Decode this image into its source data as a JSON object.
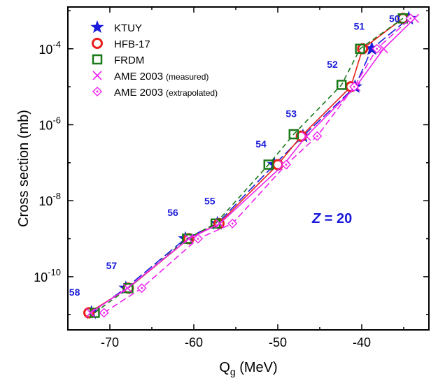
{
  "chart_data": {
    "type": "scatter",
    "xlabel_main": "Q",
    "xlabel_sub": "g",
    "xlabel_unit": " (MeV)",
    "ylabel": "Cross section (mb)",
    "annotation": {
      "z_label": "Z",
      "z_value": " = 20"
    },
    "x_ticks": [
      "-70",
      "-60",
      "-50",
      "-40"
    ],
    "x_tick_values": [
      -70,
      -60,
      -50,
      -40
    ],
    "y_ticks": [
      {
        "base": "10",
        "exp": "-4",
        "value": -4
      },
      {
        "base": "10",
        "exp": "-6",
        "value": -6
      },
      {
        "base": "10",
        "exp": "-8",
        "value": -8
      },
      {
        "base": "10",
        "exp": "-10",
        "value": -10
      }
    ],
    "xlim": [
      -75,
      -32
    ],
    "ylim_log10": [
      -11.4,
      -2.9
    ],
    "yscale": "log",
    "legend_position": "top-left",
    "mass_labels": [
      {
        "label": "58",
        "x": -74.2,
        "y": -10.5
      },
      {
        "label": "57",
        "x": -69.8,
        "y": -9.8
      },
      {
        "label": "56",
        "x": -62.5,
        "y": -8.4
      },
      {
        "label": "55",
        "x": -58.1,
        "y": -8.1
      },
      {
        "label": "54",
        "x": -52.0,
        "y": -6.6
      },
      {
        "label": "53",
        "x": -48.4,
        "y": -5.8
      },
      {
        "label": "52",
        "x": -43.5,
        "y": -4.5
      },
      {
        "label": "51",
        "x": -40.3,
        "y": -3.5
      },
      {
        "label": "50",
        "x": -36.1,
        "y": -3.3
      }
    ],
    "series": [
      {
        "name": "KTUY",
        "marker": "star",
        "color": "#1a1adb",
        "line_style": "long-dash",
        "x": [
          -72.2,
          -68.1,
          -61.0,
          -57.2,
          -50.4,
          -47.0,
          -40.8,
          -38.8,
          -34.4
        ],
        "y": [
          -10.95,
          -10.3,
          -9.0,
          -8.6,
          -7.05,
          -6.3,
          -5.0,
          -4.0,
          -3.2
        ]
      },
      {
        "name": "HFB-17",
        "marker": "circle",
        "color": "#e8201a",
        "line_style": "solid",
        "x": [
          -72.5,
          -67.8,
          -60.6,
          -57.0,
          -50.0,
          -47.2,
          -41.3,
          -39.9,
          -35.1
        ],
        "y": [
          -10.95,
          -10.3,
          -9.0,
          -8.6,
          -7.05,
          -6.3,
          -5.0,
          -4.0,
          -3.2
        ]
      },
      {
        "name": "FRDM",
        "marker": "square",
        "color": "#1a7a1a",
        "line_style": "short-dash",
        "x": [
          -71.8,
          -67.8,
          -60.8,
          -57.4,
          -51.1,
          -48.1,
          -42.4,
          -40.2,
          -35.1
        ],
        "y": [
          -10.95,
          -10.3,
          -9.0,
          -8.6,
          -7.05,
          -6.25,
          -4.95,
          -4.0,
          -3.2
        ]
      },
      {
        "name": "AME 2003",
        "name_suffix": "(measured)",
        "marker": "cross",
        "color": "#ee22ee",
        "line_style": "solid",
        "x": [
          -72.3,
          -67.9,
          -60.6,
          -56.9,
          -49.3,
          -46.6,
          -40.7,
          -37.4,
          -33.7
        ],
        "y": [
          -10.95,
          -10.3,
          -9.0,
          -8.6,
          -7.05,
          -6.3,
          -5.0,
          -4.0,
          -3.2
        ]
      },
      {
        "name": "AME 2003",
        "name_suffix": "(extrapolated)",
        "marker": "diamond",
        "color": "#ee22ee",
        "line_style": "dash",
        "x": [
          -70.7,
          -66.2,
          -59.5,
          -55.4,
          -49.0,
          -45.3,
          -40.9,
          -38.2,
          -34.2
        ],
        "y": [
          -10.95,
          -10.3,
          -9.0,
          -8.6,
          -7.05,
          -6.3,
          -5.0,
          -4.0,
          -3.2
        ]
      }
    ]
  }
}
